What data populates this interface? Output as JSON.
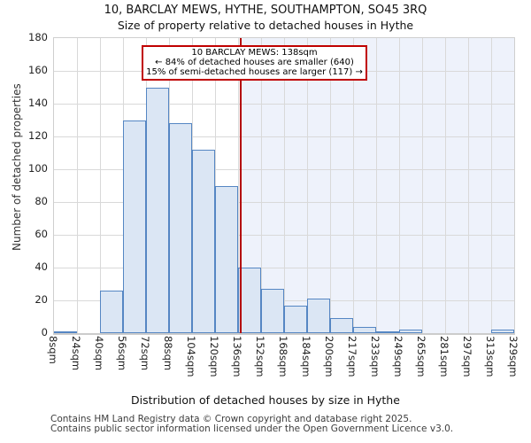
{
  "title": "10, BARCLAY MEWS, HYTHE, SOUTHAMPTON, SO45 3RQ",
  "subtitle": "Size of property relative to detached houses in Hythe",
  "annotation": {
    "line1": "10 BARCLAY MEWS: 138sqm",
    "line2": "← 84% of detached houses are smaller (640)",
    "line3": "15% of semi-detached houses are larger (117) →"
  },
  "chart_data": {
    "type": "bar",
    "title": "Size of property relative to detached houses in Hythe",
    "xlabel": "Distribution of detached houses by size in Hythe",
    "ylabel": "Number of detached properties",
    "ylim": [
      0,
      180
    ],
    "y_ticks": [
      0,
      20,
      40,
      60,
      80,
      100,
      120,
      140,
      160,
      180
    ],
    "x_tick_labels": [
      "8sqm",
      "24sqm",
      "40sqm",
      "56sqm",
      "72sqm",
      "88sqm",
      "104sqm",
      "120sqm",
      "136sqm",
      "152sqm",
      "168sqm",
      "184sqm",
      "200sqm",
      "217sqm",
      "233sqm",
      "249sqm",
      "265sqm",
      "281sqm",
      "297sqm",
      "313sqm",
      "329sqm"
    ],
    "bin_edges_sqm": [
      8,
      24,
      40,
      56,
      72,
      88,
      104,
      120,
      136,
      152,
      168,
      184,
      200,
      217,
      233,
      249,
      265,
      281,
      297,
      313,
      329
    ],
    "values": [
      1,
      0,
      26,
      130,
      150,
      128,
      112,
      90,
      40,
      27,
      17,
      21,
      9,
      4,
      1,
      2,
      0,
      0,
      0,
      2
    ],
    "marker_value_sqm": 138,
    "grid": true,
    "legend": null,
    "shade_right_of_marker": true
  },
  "footer": {
    "line1": "Contains HM Land Registry data © Crown copyright and database right 2025.",
    "line2": "Contains public sector information licensed under the Open Government Licence v3.0."
  },
  "colors": {
    "bar_fill": "#dbe6f4",
    "bar_border": "#5586c3",
    "marker_red": "#b40000",
    "annotation_border": "#c00000",
    "grid": "#d9d9d9",
    "shade_right": "#eef2fb",
    "frame": "#cfcfcf",
    "footer_text": "#3d3d3d"
  }
}
